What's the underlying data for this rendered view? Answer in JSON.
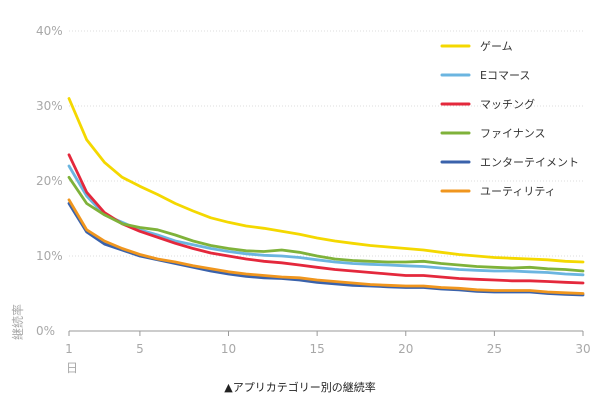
{
  "chart_data": {
    "type": "line",
    "title": "",
    "caption": "▲アプリカテゴリー別の継続率",
    "ylabel": "継続率",
    "xlabel_unit": "日",
    "xlim": [
      1,
      30
    ],
    "ylim": [
      0,
      40
    ],
    "x_ticks": [
      1,
      5,
      10,
      15,
      20,
      25,
      30
    ],
    "x_tick_labels": [
      "1",
      "5",
      "10",
      "15",
      "20",
      "25",
      "30"
    ],
    "y_ticks": [
      0,
      10,
      20,
      30,
      40
    ],
    "y_tick_labels": [
      "0%",
      "10%",
      "20%",
      "30%",
      "40%"
    ],
    "grid": "horizontal",
    "legend_position": "top-right",
    "x": [
      1,
      2,
      3,
      4,
      5,
      6,
      7,
      8,
      9,
      10,
      11,
      12,
      13,
      14,
      15,
      16,
      17,
      18,
      19,
      20,
      21,
      22,
      23,
      24,
      25,
      26,
      27,
      28,
      29,
      30
    ],
    "series": [
      {
        "name": "ゲーム",
        "color": "#f4d800",
        "values": [
          31,
          25.5,
          22.5,
          20.5,
          19.3,
          18.2,
          17,
          16,
          15.1,
          14.5,
          14,
          13.7,
          13.3,
          12.9,
          12.4,
          12,
          11.7,
          11.4,
          11.2,
          11,
          10.8,
          10.5,
          10.2,
          10,
          9.8,
          9.7,
          9.6,
          9.5,
          9.3,
          9.2
        ]
      },
      {
        "name": "Eコマース",
        "color": "#6bb5e0",
        "values": [
          22,
          18,
          15.5,
          14.5,
          13.5,
          12.8,
          12,
          11.5,
          11,
          10.6,
          10.3,
          10.1,
          10,
          9.8,
          9.5,
          9.2,
          9,
          8.9,
          8.8,
          8.7,
          8.6,
          8.4,
          8.2,
          8.1,
          8,
          8,
          7.9,
          7.8,
          7.6,
          7.5
        ]
      },
      {
        "name": "マッチング",
        "color": "#e4283c",
        "values": [
          23.5,
          18.5,
          15.8,
          14.3,
          13.3,
          12.5,
          11.7,
          11,
          10.4,
          10,
          9.6,
          9.3,
          9.1,
          8.8,
          8.5,
          8.2,
          8,
          7.8,
          7.6,
          7.4,
          7.4,
          7.2,
          7,
          6.9,
          6.8,
          6.7,
          6.7,
          6.6,
          6.5,
          6.4
        ]
      },
      {
        "name": "ファイナンス",
        "color": "#7fb23a",
        "values": [
          20.5,
          17,
          15.5,
          14.3,
          13.8,
          13.5,
          12.8,
          12,
          11.4,
          11,
          10.7,
          10.6,
          10.8,
          10.5,
          10,
          9.6,
          9.4,
          9.3,
          9.2,
          9.2,
          9.3,
          9,
          8.8,
          8.6,
          8.5,
          8.4,
          8.5,
          8.3,
          8.2,
          8
        ]
      },
      {
        "name": "エンターテイメント",
        "color": "#3a62ab",
        "values": [
          17,
          13.2,
          11.6,
          10.8,
          10,
          9.5,
          9,
          8.5,
          8,
          7.6,
          7.3,
          7.1,
          7,
          6.8,
          6.5,
          6.3,
          6.1,
          6,
          5.9,
          5.8,
          5.8,
          5.6,
          5.5,
          5.3,
          5.2,
          5.2,
          5.2,
          5,
          4.9,
          4.8
        ]
      },
      {
        "name": "ユーティリティ",
        "color": "#f0961e",
        "values": [
          17.5,
          13.5,
          12,
          11,
          10.2,
          9.6,
          9.2,
          8.7,
          8.3,
          7.9,
          7.6,
          7.4,
          7.2,
          7.1,
          6.8,
          6.6,
          6.4,
          6.2,
          6.1,
          6,
          6,
          5.8,
          5.7,
          5.5,
          5.4,
          5.4,
          5.4,
          5.2,
          5.1,
          5
        ]
      }
    ]
  }
}
